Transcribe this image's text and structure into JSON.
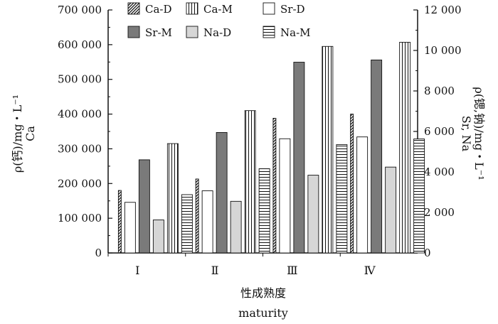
{
  "chart_data": {
    "type": "bar",
    "categories": [
      "Ⅰ",
      "Ⅱ",
      "Ⅲ",
      "Ⅳ"
    ],
    "xlabel": [
      "性成熟度",
      "maturity"
    ],
    "ylabel_left": [
      "ρ(钙)/mg・L⁻¹",
      "Ca"
    ],
    "ylabel_right": [
      "ρ(锶,钠)/mg・L⁻¹",
      "Sr, Na"
    ],
    "ylim_left": [
      0,
      700000
    ],
    "ylim_right": [
      0,
      12000
    ],
    "yticks_left": [
      "0",
      "100 000",
      "200 000",
      "300 000",
      "400 000",
      "500 000",
      "600 000",
      "700 000"
    ],
    "yticks_right": [
      "0",
      "2 000",
      "4 000",
      "6 000",
      "8 000",
      "10 000",
      "12 000"
    ],
    "legend_position": "top",
    "series": [
      {
        "name": "Ca-D",
        "axis": "left",
        "pattern": "diagonal",
        "values": [
          180000,
          213000,
          388000,
          400000
        ]
      },
      {
        "name": "Sr-D",
        "axis": "right",
        "pattern": "empty",
        "values": [
          2500,
          3070,
          5640,
          5730
        ]
      },
      {
        "name": "Sr-M",
        "axis": "right",
        "pattern": "dark",
        "values": [
          4600,
          5950,
          9420,
          9530
        ]
      },
      {
        "name": "Na-D",
        "axis": "right",
        "pattern": "light",
        "values": [
          1630,
          2550,
          3840,
          4240
        ]
      },
      {
        "name": "Ca-M",
        "axis": "left",
        "pattern": "vertical",
        "values": [
          315000,
          410000,
          595000,
          607000
        ]
      },
      {
        "name": "Na-M",
        "axis": "right",
        "pattern": "horizontal",
        "values": [
          2880,
          4160,
          5350,
          5630
        ]
      }
    ]
  }
}
